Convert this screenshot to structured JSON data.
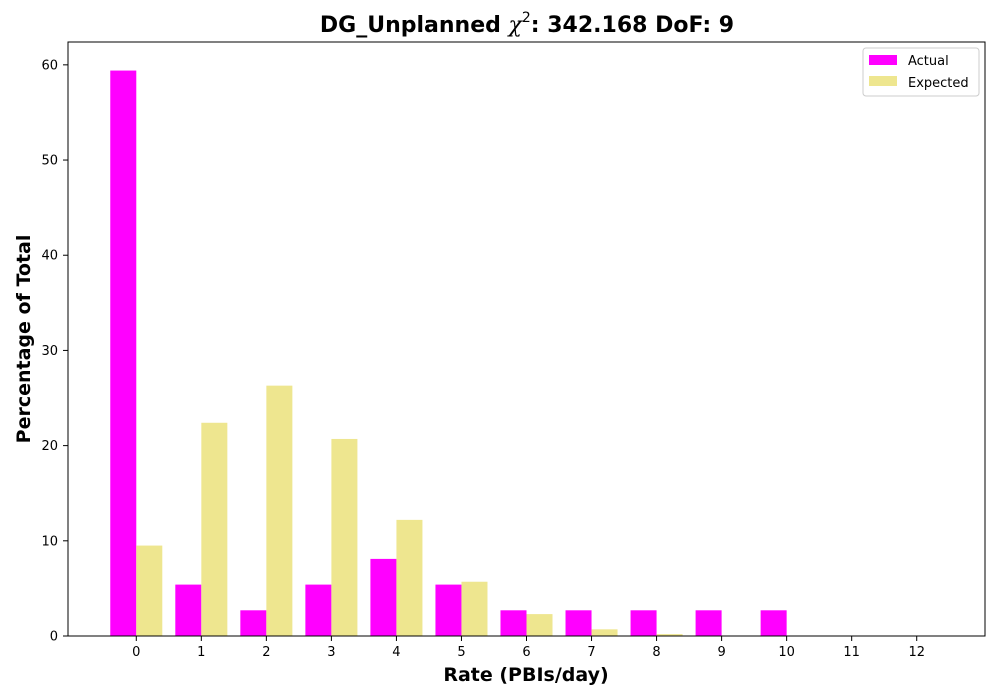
{
  "chart_data": {
    "type": "bar",
    "title": "DG_Unplanned χ²: 342.168 DoF: 9",
    "title_parts": {
      "prefix": "DG_Unplanned ",
      "chi": "χ",
      "sup": "2",
      "suffix": ": 342.168 DoF: 9"
    },
    "xlabel": "Rate (PBIs/day)",
    "ylabel": "Percentage of Total",
    "categories": [
      "0",
      "1",
      "2",
      "3",
      "4",
      "5",
      "6",
      "7",
      "8",
      "9",
      "10",
      "11",
      "12"
    ],
    "series": [
      {
        "name": "Actual",
        "color": "#ff00ff",
        "values": [
          59.4,
          5.4,
          2.7,
          5.4,
          8.1,
          5.4,
          2.7,
          2.7,
          2.7,
          2.7,
          2.7,
          0,
          0
        ]
      },
      {
        "name": "Expected",
        "color": "#eee68f",
        "values": [
          9.5,
          22.4,
          26.3,
          20.7,
          12.2,
          5.7,
          2.3,
          0.7,
          0.2,
          0.05,
          0.01,
          0,
          0
        ]
      }
    ],
    "yticks": [
      0,
      10,
      20,
      30,
      40,
      50,
      60
    ],
    "ylim": [
      0,
      62.4
    ],
    "xlim": [
      -1.05,
      13.05
    ],
    "grid": false,
    "legend_position": "top-right"
  }
}
